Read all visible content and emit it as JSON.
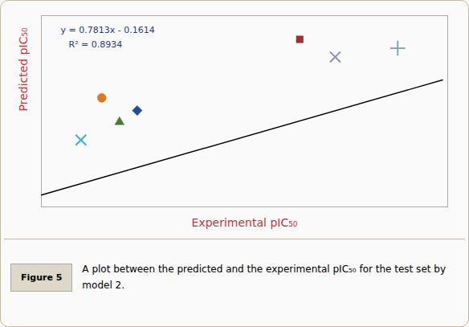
{
  "chart_data": {
    "type": "scatter",
    "xlabel": "Experimental pIC₅₀",
    "ylabel": "Predicted pIC₅₀",
    "label_color": "#CC3333",
    "xlim": [
      4.7,
      8.6
    ],
    "ylim": [
      3.2,
      8.2
    ],
    "tick_labels": false,
    "grid": false,
    "series": [
      {
        "type": "line",
        "x": [
          4.7,
          8.55
        ],
        "values": [
          3.51071,
          6.518715
        ],
        "color": "black"
      },
      {
        "type": "scatter",
        "x": [
          5.28
        ],
        "values": [
          6.05
        ],
        "color": "#E07820",
        "marker": "circle"
      },
      {
        "type": "scatter",
        "x": [
          5.62
        ],
        "values": [
          5.72
        ],
        "color": "#1F4E9A",
        "marker": "diamond"
      },
      {
        "type": "scatter",
        "x": [
          5.45
        ],
        "values": [
          5.42
        ],
        "color": "#4A7A30",
        "marker": "triangle"
      },
      {
        "type": "scatter",
        "x": [
          5.08
        ],
        "values": [
          4.95
        ],
        "color": "#3AAFCF",
        "marker": "x"
      },
      {
        "type": "scatter",
        "x": [
          7.18
        ],
        "values": [
          7.58
        ],
        "color": "#A03030",
        "marker": "square"
      },
      {
        "type": "scatter",
        "x": [
          7.52
        ],
        "values": [
          7.12
        ],
        "color": "#9090BB",
        "marker": "x"
      },
      {
        "type": "scatter",
        "x": [
          8.12
        ],
        "values": [
          7.35
        ],
        "color": "#7AAABB",
        "marker": "plus"
      }
    ],
    "annotations": [
      {
        "text": "y = 0.7813x - 0.1614",
        "color": "#1F3A8A"
      },
      {
        "text": "R² = 0.8934",
        "color": "#1F3A8A"
      }
    ],
    "figure_label": "Figure 5",
    "caption": "A plot between the predicted and the experimental pIC₅₀ for the test set by model 2."
  }
}
